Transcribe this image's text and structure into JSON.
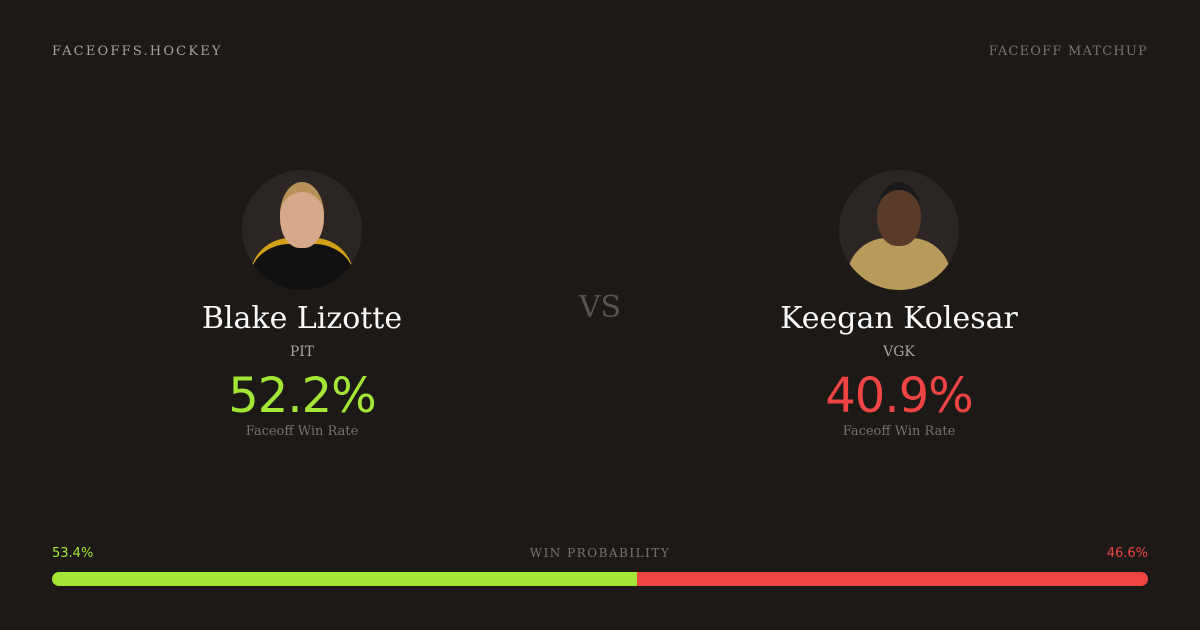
{
  "header": {
    "brand": "FACEOFFS.HOCKEY",
    "tag": "FACEOFF MATCHUP"
  },
  "colors": {
    "green": "#a3e635",
    "red": "#ef4444",
    "background": "#1c1917"
  },
  "players": [
    {
      "name": "Blake Lizotte",
      "team": "PIT",
      "rate": "52.2%",
      "rate_label": "Faceoff Win Rate",
      "photo": "player-headshot"
    },
    {
      "name": "Keegan Kolesar",
      "team": "VGK",
      "rate": "40.9%",
      "rate_label": "Faceoff Win Rate",
      "photo": "player-headshot"
    }
  ],
  "vs": "VS",
  "win_probability": {
    "title": "WIN PROBABILITY",
    "left": "53.4%",
    "right": "46.6%",
    "left_value": 53.4,
    "right_value": 46.6
  }
}
